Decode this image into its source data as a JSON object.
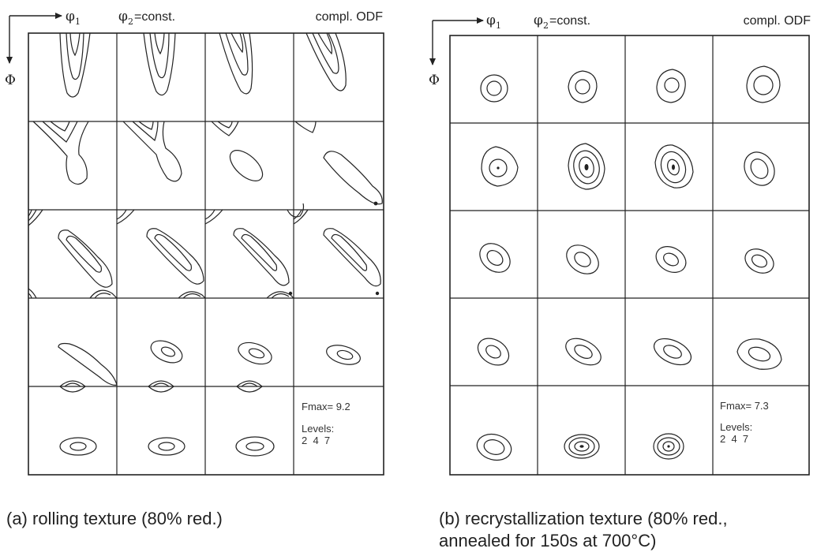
{
  "panels": [
    {
      "id": "a",
      "axis_h_symbol": "φ",
      "axis_h_sub": "1",
      "axis_v_symbol": "Φ",
      "section_symbol": "φ",
      "section_sub": "2",
      "section_text": "=const.",
      "odf_label": "compl. ODF",
      "fmax_label": "Fmax= 9.2",
      "levels_label": "Levels:",
      "levels_values": "2  4  7",
      "caption_lines": [
        "(a) rolling texture (80% red.)"
      ]
    },
    {
      "id": "b",
      "axis_h_symbol": "φ",
      "axis_h_sub": "1",
      "axis_v_symbol": "Φ",
      "section_symbol": "φ",
      "section_sub": "2",
      "section_text": "=const.",
      "odf_label": "compl. ODF",
      "fmax_label": "Fmax= 7.3",
      "levels_label": "Levels:",
      "levels_values": "2  4  7",
      "caption_lines": [
        "(b) recrystallization texture (80% red.,",
        "annealed for 150s at 700°C)"
      ]
    }
  ]
}
